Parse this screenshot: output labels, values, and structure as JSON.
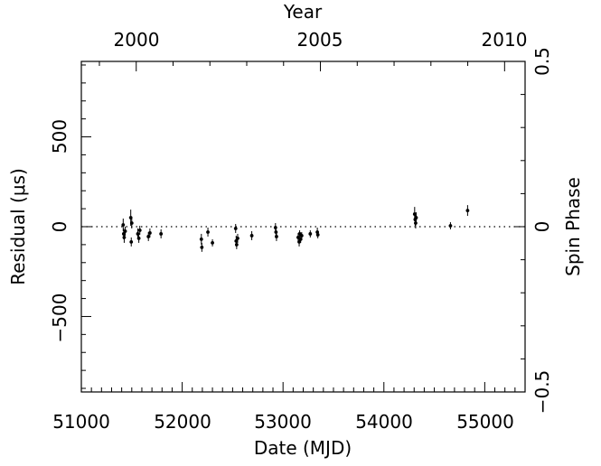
{
  "chart_data": {
    "type": "scatter",
    "xlabel": "Date (MJD)",
    "ylabel": "Residual (μs)",
    "top_axis_label": "Year",
    "right_axis_label": "Spin Phase",
    "xlim": [
      51000,
      55400
    ],
    "ylim": [
      -920,
      920
    ],
    "x_ticks": [
      "51000",
      "52000",
      "53000",
      "54000",
      "55000"
    ],
    "y_ticks": [
      "500",
      "0",
      "−500"
    ],
    "top_ticks": [
      "2000",
      "2005",
      "2010"
    ],
    "right_ticks": [
      "0.5",
      "0",
      "−0.5"
    ],
    "zero_line": "dotted",
    "grid": false,
    "series": [
      {
        "points": [
          {
            "x": 51415,
            "y": 10,
            "err": 35
          },
          {
            "x": 51420,
            "y": -40,
            "err": 30
          },
          {
            "x": 51425,
            "y": -60,
            "err": 30
          },
          {
            "x": 51435,
            "y": -25,
            "err": 25
          },
          {
            "x": 51490,
            "y": 50,
            "err": 45
          },
          {
            "x": 51495,
            "y": -85,
            "err": 25
          },
          {
            "x": 51500,
            "y": 20,
            "err": 30
          },
          {
            "x": 51560,
            "y": -40,
            "err": 30
          },
          {
            "x": 51570,
            "y": -65,
            "err": 25
          },
          {
            "x": 51580,
            "y": -20,
            "err": 25
          },
          {
            "x": 51665,
            "y": -55,
            "err": 25
          },
          {
            "x": 51680,
            "y": -35,
            "err": 25
          },
          {
            "x": 51790,
            "y": -40,
            "err": 25
          },
          {
            "x": 52190,
            "y": -70,
            "err": 30
          },
          {
            "x": 52195,
            "y": -115,
            "err": 25
          },
          {
            "x": 52255,
            "y": -30,
            "err": 25
          },
          {
            "x": 52300,
            "y": -90,
            "err": 20
          },
          {
            "x": 52530,
            "y": -10,
            "err": 25
          },
          {
            "x": 52535,
            "y": -80,
            "err": 30
          },
          {
            "x": 52540,
            "y": -100,
            "err": 25
          },
          {
            "x": 52550,
            "y": -65,
            "err": 25
          },
          {
            "x": 52690,
            "y": -50,
            "err": 25
          },
          {
            "x": 52925,
            "y": -5,
            "err": 25
          },
          {
            "x": 52930,
            "y": -30,
            "err": 30
          },
          {
            "x": 52935,
            "y": -55,
            "err": 25
          },
          {
            "x": 53150,
            "y": -60,
            "err": 25
          },
          {
            "x": 53160,
            "y": -85,
            "err": 25
          },
          {
            "x": 53165,
            "y": -40,
            "err": 20
          },
          {
            "x": 53175,
            "y": -70,
            "err": 20
          },
          {
            "x": 53185,
            "y": -50,
            "err": 20
          },
          {
            "x": 53270,
            "y": -40,
            "err": 20
          },
          {
            "x": 53340,
            "y": -30,
            "err": 25
          },
          {
            "x": 53345,
            "y": -45,
            "err": 20
          },
          {
            "x": 54305,
            "y": 70,
            "err": 40
          },
          {
            "x": 54310,
            "y": 40,
            "err": 35
          },
          {
            "x": 54315,
            "y": 20,
            "err": 30
          },
          {
            "x": 54320,
            "y": 50,
            "err": 30
          },
          {
            "x": 54660,
            "y": 5,
            "err": 20
          },
          {
            "x": 54830,
            "y": 90,
            "err": 30
          }
        ]
      }
    ]
  }
}
